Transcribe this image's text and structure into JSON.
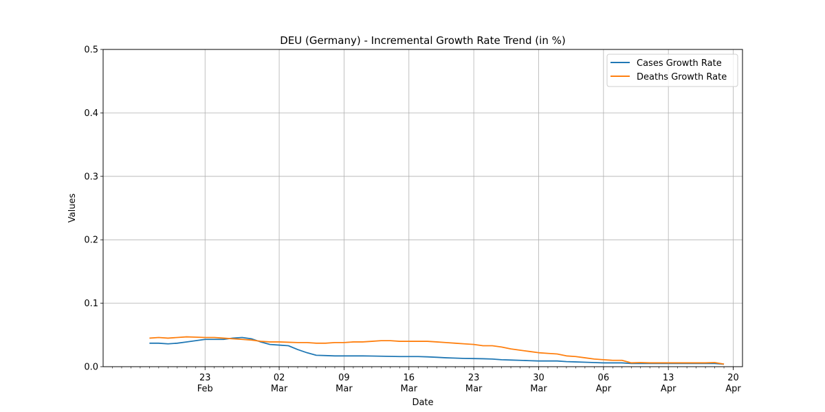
{
  "chart_data": {
    "type": "line",
    "title": "DEU (Germany) - Incremental Growth Rate Trend (in %)",
    "xlabel": "Date",
    "ylabel": "Values",
    "ylim": [
      0,
      0.5
    ],
    "xlim": [
      "2020-02-12",
      "2020-04-21"
    ],
    "grid": true,
    "legend_position": "top-right",
    "y_ticks": [
      "0.0",
      "0.1",
      "0.2",
      "0.3",
      "0.4",
      "0.5"
    ],
    "x_ticks": [
      {
        "date": "2020-02-23",
        "day": "23",
        "month": "Feb"
      },
      {
        "date": "2020-03-02",
        "day": "02",
        "month": "Mar"
      },
      {
        "date": "2020-03-09",
        "day": "09",
        "month": "Mar"
      },
      {
        "date": "2020-03-16",
        "day": "16",
        "month": "Mar"
      },
      {
        "date": "2020-03-23",
        "day": "23",
        "month": "Mar"
      },
      {
        "date": "2020-03-30",
        "day": "30",
        "month": "Mar"
      },
      {
        "date": "2020-04-06",
        "day": "06",
        "month": "Apr"
      },
      {
        "date": "2020-04-13",
        "day": "13",
        "month": "Apr"
      },
      {
        "date": "2020-04-20",
        "day": "20",
        "month": "Apr"
      }
    ],
    "x": [
      "2020-02-17",
      "2020-02-18",
      "2020-02-19",
      "2020-02-20",
      "2020-02-21",
      "2020-02-22",
      "2020-02-23",
      "2020-02-24",
      "2020-02-25",
      "2020-02-26",
      "2020-02-27",
      "2020-02-28",
      "2020-02-29",
      "2020-03-01",
      "2020-03-02",
      "2020-03-03",
      "2020-03-04",
      "2020-03-05",
      "2020-03-06",
      "2020-03-07",
      "2020-03-08",
      "2020-03-09",
      "2020-03-10",
      "2020-03-11",
      "2020-03-12",
      "2020-03-13",
      "2020-03-14",
      "2020-03-15",
      "2020-03-16",
      "2020-03-17",
      "2020-03-18",
      "2020-03-19",
      "2020-03-20",
      "2020-03-21",
      "2020-03-22",
      "2020-03-23",
      "2020-03-24",
      "2020-03-25",
      "2020-03-26",
      "2020-03-27",
      "2020-03-28",
      "2020-03-29",
      "2020-03-30",
      "2020-03-31",
      "2020-04-01",
      "2020-04-02",
      "2020-04-03",
      "2020-04-04",
      "2020-04-05",
      "2020-04-06",
      "2020-04-07",
      "2020-04-08",
      "2020-04-09",
      "2020-04-10",
      "2020-04-11",
      "2020-04-12",
      "2020-04-13",
      "2020-04-14",
      "2020-04-15",
      "2020-04-16",
      "2020-04-17",
      "2020-04-18",
      "2020-04-19"
    ],
    "series": [
      {
        "name": "Cases Growth Rate",
        "color": "#1f77b4",
        "values": [
          0.037,
          0.037,
          0.036,
          0.037,
          0.039,
          0.041,
          0.043,
          0.043,
          0.043,
          0.045,
          0.046,
          0.044,
          0.039,
          0.035,
          0.034,
          0.033,
          0.027,
          0.022,
          0.018,
          0.0175,
          0.017,
          0.017,
          0.017,
          0.017,
          0.0168,
          0.0165,
          0.0162,
          0.016,
          0.016,
          0.016,
          0.0155,
          0.0148,
          0.014,
          0.0135,
          0.013,
          0.0128,
          0.0125,
          0.012,
          0.011,
          0.0105,
          0.01,
          0.0095,
          0.009,
          0.009,
          0.009,
          0.008,
          0.0075,
          0.007,
          0.0065,
          0.006,
          0.006,
          0.006,
          0.005,
          0.005,
          0.005,
          0.005,
          0.005,
          0.005,
          0.005,
          0.005,
          0.005,
          0.005,
          0.004
        ]
      },
      {
        "name": "Deaths Growth Rate",
        "color": "#ff7f0e",
        "values": [
          0.045,
          0.046,
          0.045,
          0.046,
          0.047,
          0.0465,
          0.046,
          0.046,
          0.045,
          0.044,
          0.043,
          0.042,
          0.04,
          0.039,
          0.039,
          0.0385,
          0.038,
          0.038,
          0.037,
          0.037,
          0.038,
          0.038,
          0.039,
          0.039,
          0.04,
          0.041,
          0.041,
          0.04,
          0.04,
          0.04,
          0.04,
          0.039,
          0.038,
          0.037,
          0.036,
          0.035,
          0.033,
          0.033,
          0.031,
          0.028,
          0.026,
          0.024,
          0.022,
          0.021,
          0.02,
          0.017,
          0.016,
          0.014,
          0.012,
          0.011,
          0.01,
          0.01,
          0.006,
          0.0065,
          0.006,
          0.006,
          0.006,
          0.006,
          0.006,
          0.006,
          0.006,
          0.0065,
          0.004
        ]
      }
    ]
  }
}
